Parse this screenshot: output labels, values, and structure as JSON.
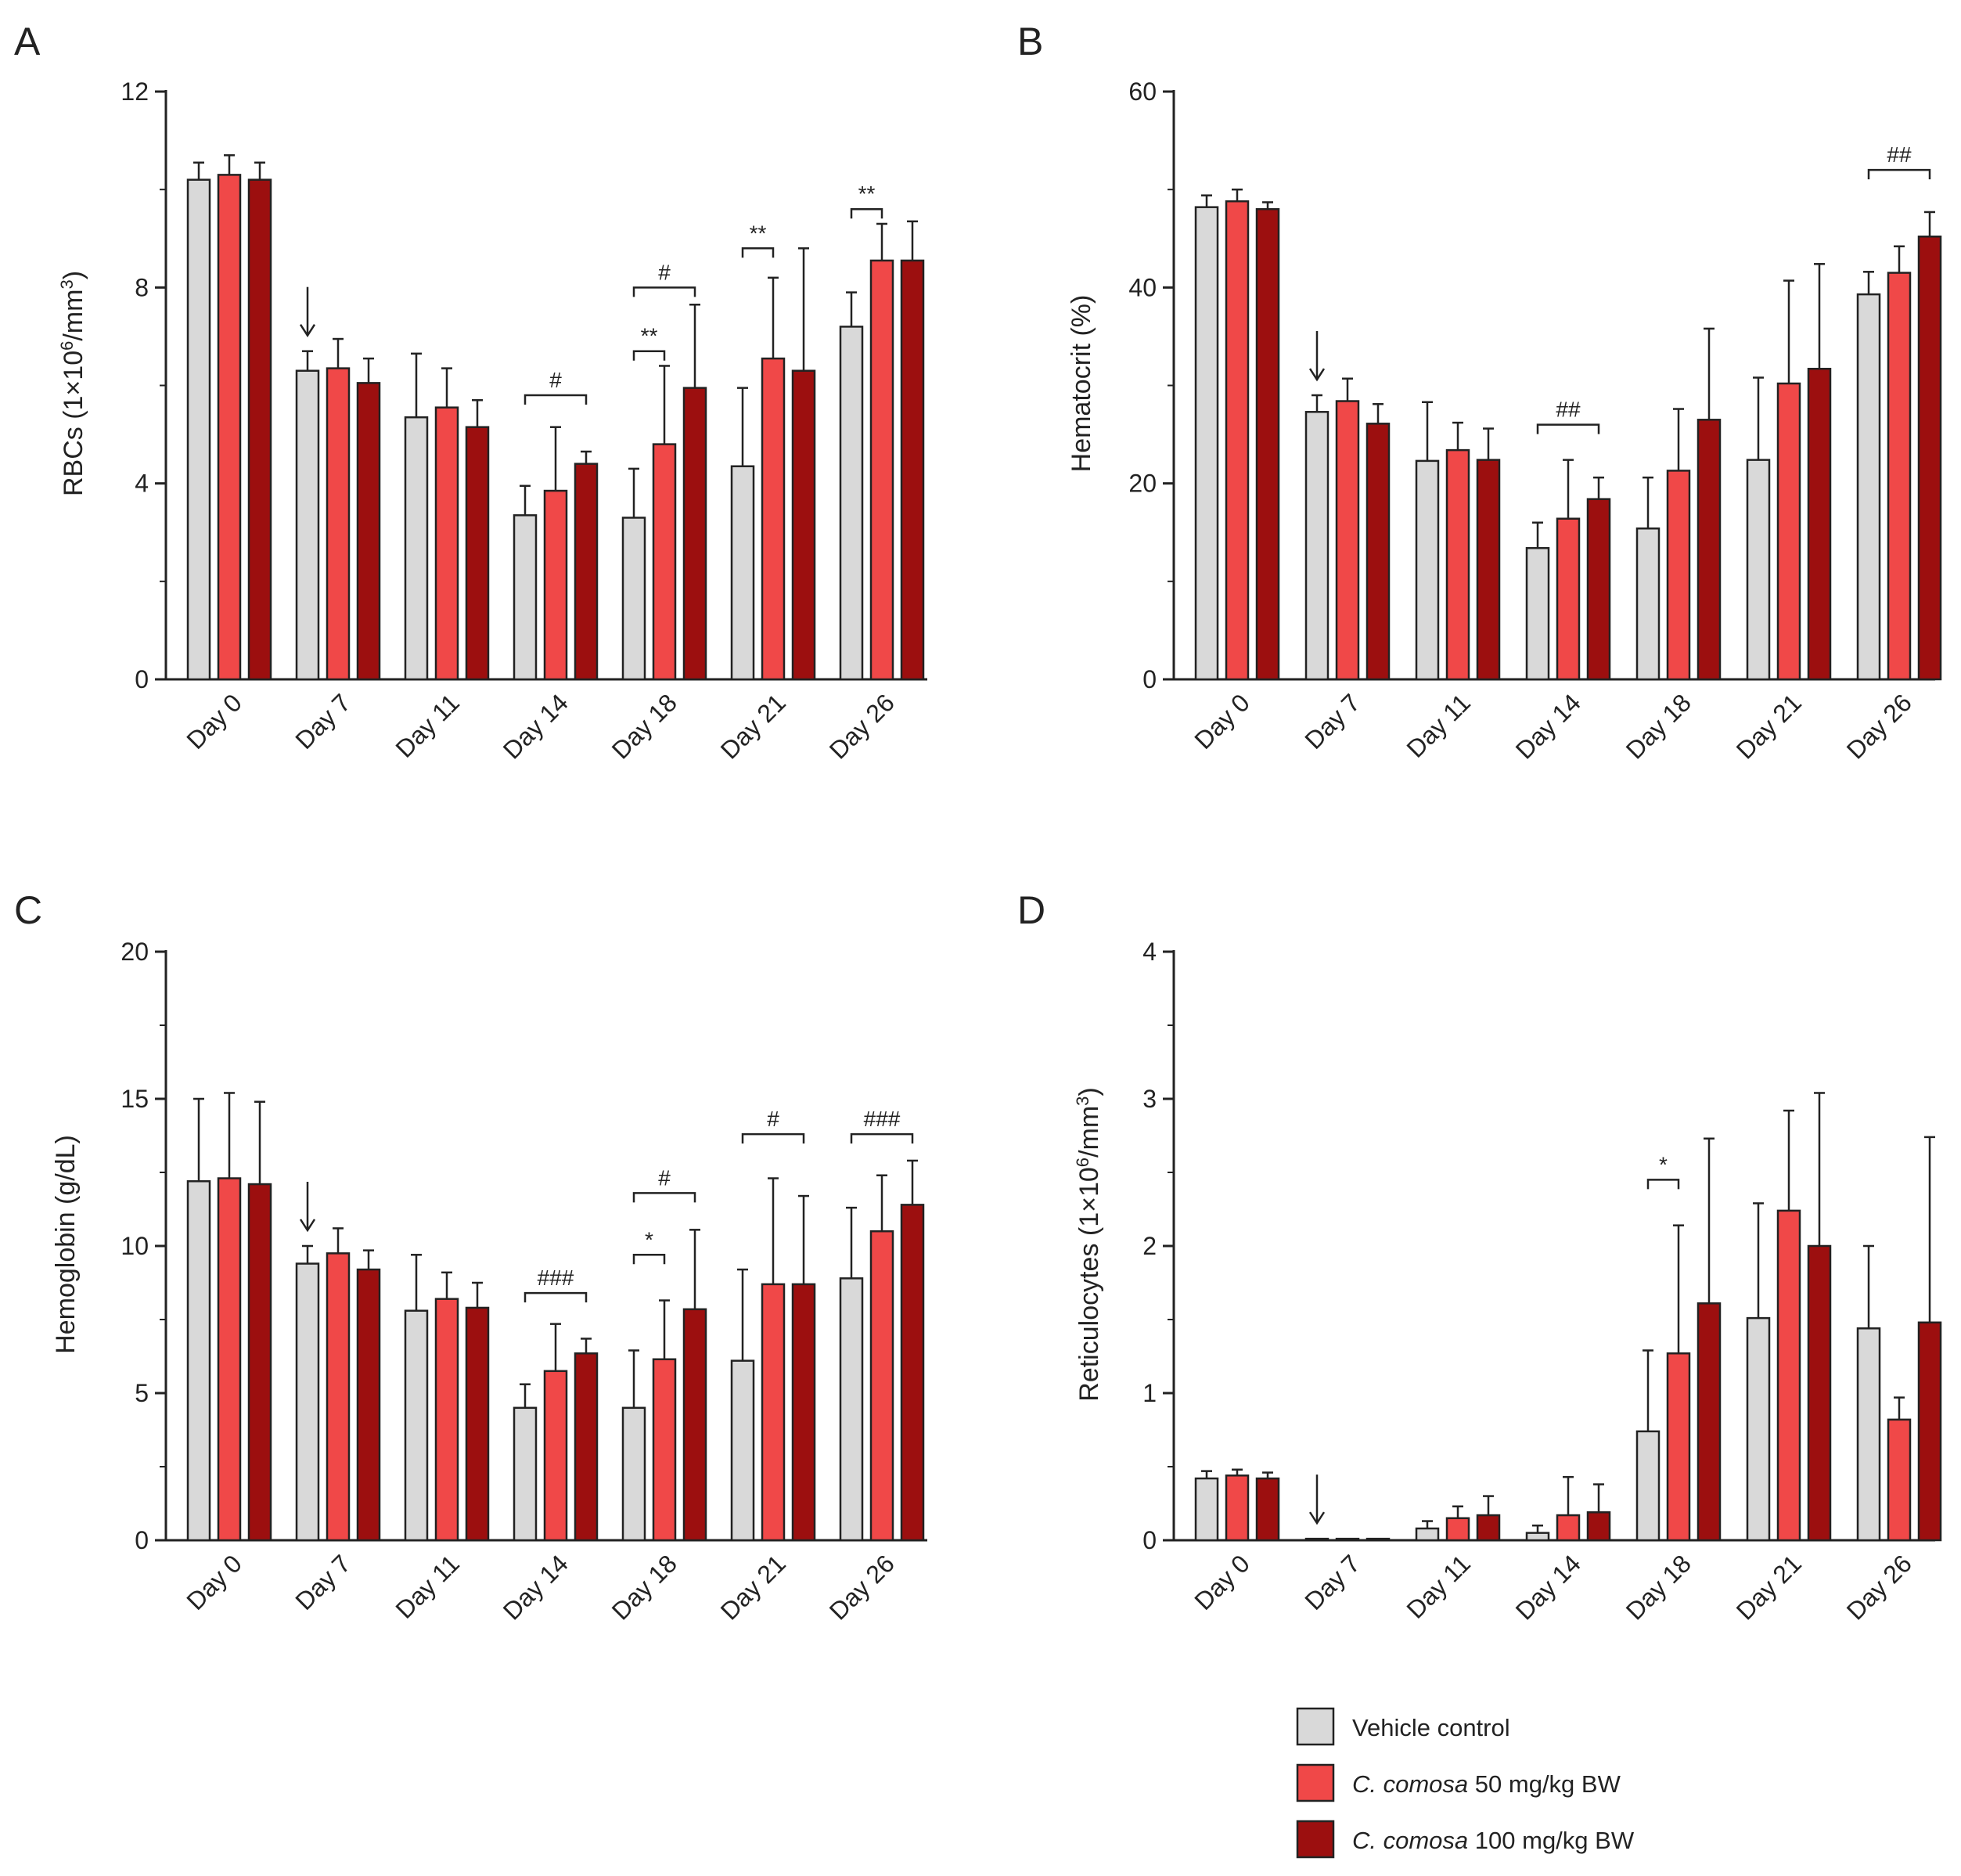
{
  "colors": {
    "vehicle_fill": "#d9d9d9",
    "low_dose_fill": "#f04848",
    "high_dose_fill": "#9c0f0f",
    "stroke": "#222222"
  },
  "legend": [
    {
      "prefix": "",
      "italic": "",
      "rest": "Vehicle control",
      "color": "#d9d9d9"
    },
    {
      "prefix": "",
      "italic": "C. comosa",
      "rest": " 50 mg/kg BW",
      "color": "#f04848"
    },
    {
      "prefix": "",
      "italic": "C. comosa",
      "rest": " 100 mg/kg BW",
      "color": "#9c0f0f"
    }
  ],
  "chart_data": [
    {
      "panel": "A",
      "type": "bar",
      "ylabel_main": "RBCs (1×10",
      "ylabel_sup1": "6",
      "ylabel_mid": "/mm",
      "ylabel_sup2": "3",
      "ylabel_end": ")",
      "ylim": [
        0,
        12
      ],
      "yticks": [
        0,
        4,
        8,
        12
      ],
      "categories": [
        "Day 0",
        "Day 7",
        "Day 11",
        "Day 14",
        "Day 18",
        "Day 21",
        "Day 26"
      ],
      "series": [
        {
          "name": "Vehicle control",
          "values": [
            10.2,
            6.3,
            5.35,
            3.35,
            3.3,
            4.35,
            7.2
          ],
          "errors": [
            0.35,
            0.4,
            1.3,
            0.6,
            1.0,
            1.6,
            0.7
          ]
        },
        {
          "name": "C. comosa 50 mg/kg BW",
          "values": [
            10.3,
            6.35,
            5.55,
            3.85,
            4.8,
            6.55,
            8.55
          ],
          "errors": [
            0.4,
            0.6,
            0.8,
            1.3,
            1.6,
            1.65,
            0.75
          ]
        },
        {
          "name": "C. comosa 100 mg/kg BW",
          "values": [
            10.2,
            6.05,
            5.15,
            4.4,
            5.95,
            6.3,
            8.55
          ],
          "errors": [
            0.35,
            0.5,
            0.55,
            0.25,
            1.7,
            2.5,
            0.8
          ]
        }
      ],
      "arrow_category": 1,
      "annotations": [
        {
          "text": "#",
          "cat": 3,
          "from": 0,
          "to": 2,
          "y": 5.8
        },
        {
          "text": "**",
          "cat": 4,
          "from": 0,
          "to": 1,
          "y": 6.7
        },
        {
          "text": "#",
          "cat": 4,
          "from": 0,
          "to": 2,
          "y": 8.0
        },
        {
          "text": "**",
          "cat": 5,
          "from": 0,
          "to": 1,
          "y": 8.8
        },
        {
          "text": "**",
          "cat": 6,
          "from": 0,
          "to": 1,
          "y": 9.6
        }
      ]
    },
    {
      "panel": "B",
      "type": "bar",
      "ylabel_main": "Hematocrit (%)",
      "ylabel_sup1": "",
      "ylabel_mid": "",
      "ylabel_sup2": "",
      "ylabel_end": "",
      "ylim": [
        0,
        60
      ],
      "yticks": [
        0,
        20,
        40,
        60
      ],
      "categories": [
        "Day 0",
        "Day 7",
        "Day 11",
        "Day 14",
        "Day 18",
        "Day 21",
        "Day 26"
      ],
      "series": [
        {
          "name": "Vehicle control",
          "values": [
            48.2,
            27.3,
            22.3,
            13.4,
            15.4,
            22.4,
            39.3
          ],
          "errors": [
            1.2,
            1.7,
            6.0,
            2.6,
            5.2,
            8.4,
            2.3
          ]
        },
        {
          "name": "C. comosa 50 mg/kg BW",
          "values": [
            48.8,
            28.4,
            23.4,
            16.4,
            21.3,
            30.2,
            41.5
          ],
          "errors": [
            1.2,
            2.3,
            2.8,
            6.0,
            6.3,
            10.5,
            2.7
          ]
        },
        {
          "name": "C. comosa 100 mg/kg BW",
          "values": [
            48.0,
            26.1,
            22.4,
            18.4,
            26.5,
            31.7,
            45.2
          ],
          "errors": [
            0.7,
            2.0,
            3.2,
            2.2,
            9.3,
            10.7,
            2.5
          ]
        }
      ],
      "arrow_category": 1,
      "annotations": [
        {
          "text": "##",
          "cat": 3,
          "from": 0,
          "to": 2,
          "y": 26.0
        },
        {
          "text": "##",
          "cat": 6,
          "from": 0,
          "to": 2,
          "y": 52.0
        }
      ]
    },
    {
      "panel": "C",
      "type": "bar",
      "ylabel_main": "Hemoglobin (g/dL)",
      "ylabel_sup1": "",
      "ylabel_mid": "",
      "ylabel_sup2": "",
      "ylabel_end": "",
      "ylim": [
        0,
        20
      ],
      "yticks": [
        0,
        5,
        10,
        15,
        20
      ],
      "categories": [
        "Day 0",
        "Day 7",
        "Day 11",
        "Day 14",
        "Day 18",
        "Day 21",
        "Day 26"
      ],
      "series": [
        {
          "name": "Vehicle control",
          "values": [
            12.2,
            9.4,
            7.8,
            4.5,
            4.5,
            6.1,
            8.9
          ],
          "errors": [
            2.8,
            0.6,
            1.9,
            0.8,
            1.95,
            3.1,
            2.4
          ]
        },
        {
          "name": "C. comosa 50 mg/kg BW",
          "values": [
            12.3,
            9.75,
            8.2,
            5.75,
            6.15,
            8.7,
            10.5
          ],
          "errors": [
            2.9,
            0.85,
            0.9,
            1.6,
            2.0,
            3.6,
            1.9
          ]
        },
        {
          "name": "C. comosa 100 mg/kg BW",
          "values": [
            12.1,
            9.2,
            7.9,
            6.35,
            7.85,
            8.7,
            11.4
          ],
          "errors": [
            2.8,
            0.65,
            0.85,
            0.5,
            2.7,
            3.0,
            1.5
          ]
        }
      ],
      "arrow_category": 1,
      "annotations": [
        {
          "text": "###",
          "cat": 3,
          "from": 0,
          "to": 2,
          "y": 8.4
        },
        {
          "text": "*",
          "cat": 4,
          "from": 0,
          "to": 1,
          "y": 9.7
        },
        {
          "text": "#",
          "cat": 4,
          "from": 0,
          "to": 2,
          "y": 11.8
        },
        {
          "text": "#",
          "cat": 5,
          "from": 0,
          "to": 2,
          "y": 13.8
        },
        {
          "text": "###",
          "cat": 6,
          "from": 0,
          "to": 2,
          "y": 13.8
        }
      ]
    },
    {
      "panel": "D",
      "type": "bar",
      "ylabel_main": "Reticulocytes (1×10",
      "ylabel_sup1": "6",
      "ylabel_mid": "/mm",
      "ylabel_sup2": "3",
      "ylabel_end": ")",
      "ylim": [
        0,
        4
      ],
      "yticks": [
        0,
        1,
        2,
        3,
        4
      ],
      "categories": [
        "Day 0",
        "Day 7",
        "Day 11",
        "Day 14",
        "Day 18",
        "Day 21",
        "Day 26"
      ],
      "series": [
        {
          "name": "Vehicle control",
          "values": [
            0.42,
            0.01,
            0.08,
            0.05,
            0.74,
            1.51,
            1.44
          ],
          "errors": [
            0.05,
            0.0,
            0.05,
            0.05,
            0.55,
            0.78,
            0.56
          ]
        },
        {
          "name": "C. comosa 50 mg/kg BW",
          "values": [
            0.44,
            0.01,
            0.15,
            0.17,
            1.27,
            2.24,
            0.82
          ],
          "errors": [
            0.04,
            0.0,
            0.08,
            0.26,
            0.87,
            0.68,
            0.15
          ]
        },
        {
          "name": "C. comosa 100 mg/kg BW",
          "values": [
            0.42,
            0.01,
            0.17,
            0.19,
            1.61,
            2.0,
            1.48
          ],
          "errors": [
            0.04,
            0.0,
            0.13,
            0.19,
            1.12,
            1.04,
            1.26
          ]
        }
      ],
      "arrow_category": 1,
      "annotations": [
        {
          "text": "*",
          "cat": 4,
          "from": 0,
          "to": 1,
          "y": 2.45
        }
      ]
    }
  ]
}
